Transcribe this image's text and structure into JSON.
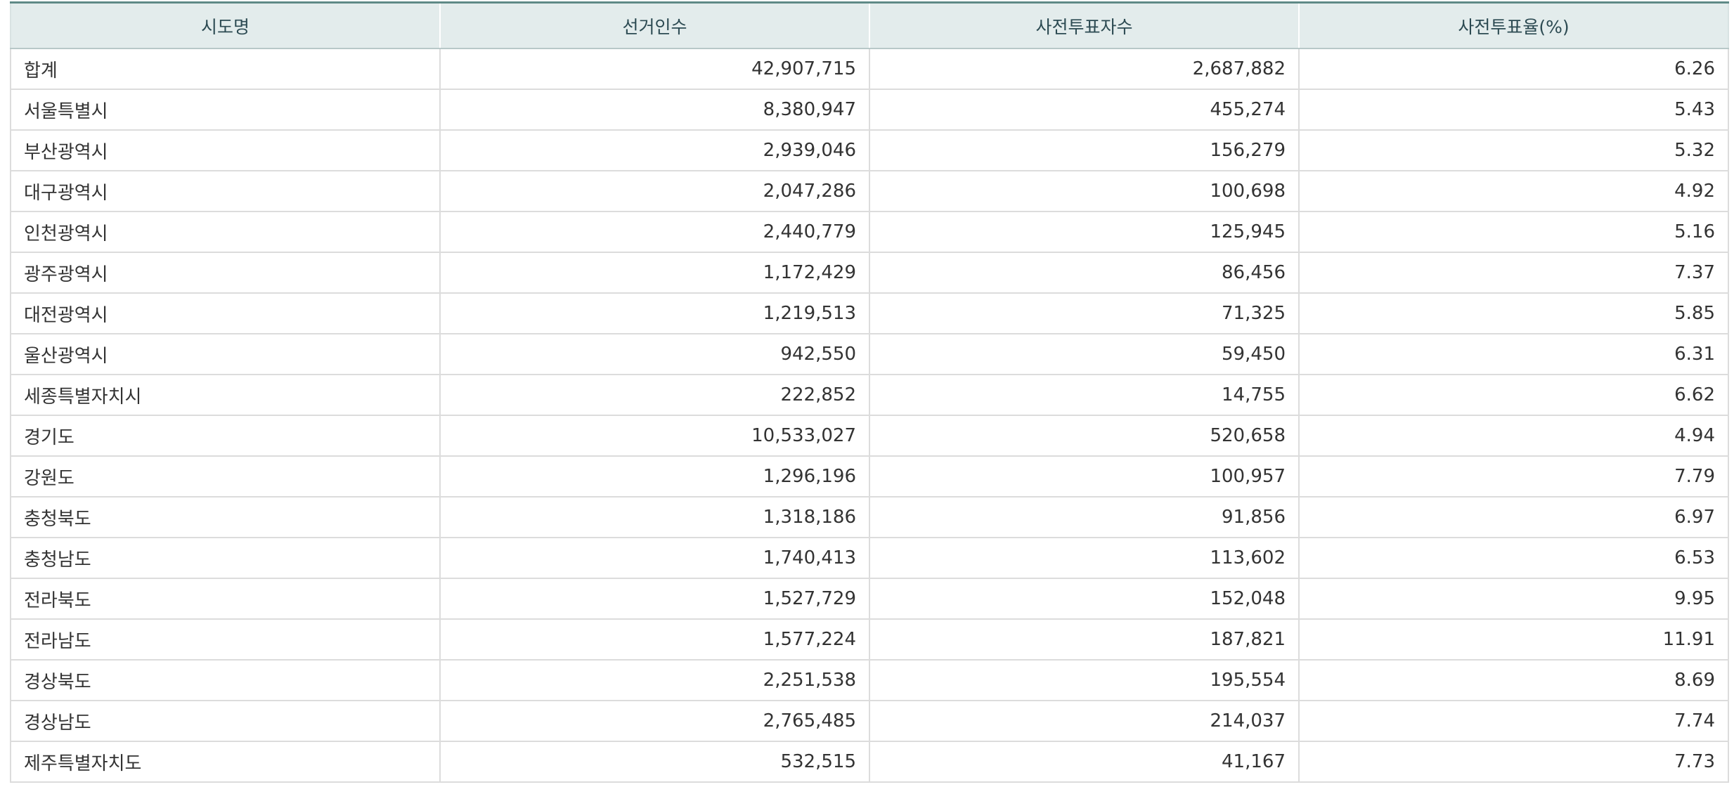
{
  "table": {
    "headers": [
      "시도명",
      "선거인수",
      "사전투표자수",
      "사전투표율(%)"
    ],
    "rows": [
      [
        "합계",
        "42,907,715",
        "2,687,882",
        "6.26"
      ],
      [
        "서울특별시",
        "8,380,947",
        "455,274",
        "5.43"
      ],
      [
        "부산광역시",
        "2,939,046",
        "156,279",
        "5.32"
      ],
      [
        "대구광역시",
        "2,047,286",
        "100,698",
        "4.92"
      ],
      [
        "인천광역시",
        "2,440,779",
        "125,945",
        "5.16"
      ],
      [
        "광주광역시",
        "1,172,429",
        "86,456",
        "7.37"
      ],
      [
        "대전광역시",
        "1,219,513",
        "71,325",
        "5.85"
      ],
      [
        "울산광역시",
        "942,550",
        "59,450",
        "6.31"
      ],
      [
        "세종특별자치시",
        "222,852",
        "14,755",
        "6.62"
      ],
      [
        "경기도",
        "10,533,027",
        "520,658",
        "4.94"
      ],
      [
        "강원도",
        "1,296,196",
        "100,957",
        "7.79"
      ],
      [
        "충청북도",
        "1,318,186",
        "91,856",
        "6.97"
      ],
      [
        "충청남도",
        "1,740,413",
        "113,602",
        "6.53"
      ],
      [
        "전라북도",
        "1,527,729",
        "152,048",
        "9.95"
      ],
      [
        "전라남도",
        "1,577,224",
        "187,821",
        "11.91"
      ],
      [
        "경상북도",
        "2,251,538",
        "195,554",
        "8.69"
      ],
      [
        "경상남도",
        "2,765,485",
        "214,037",
        "7.74"
      ],
      [
        "제주특별자치도",
        "532,515",
        "41,167",
        "7.73"
      ]
    ]
  },
  "colors": {
    "header_bg": "#e3ecec",
    "header_text": "#2c4a52",
    "top_border": "#5f8a87",
    "cell_border": "#dcdcdc"
  }
}
